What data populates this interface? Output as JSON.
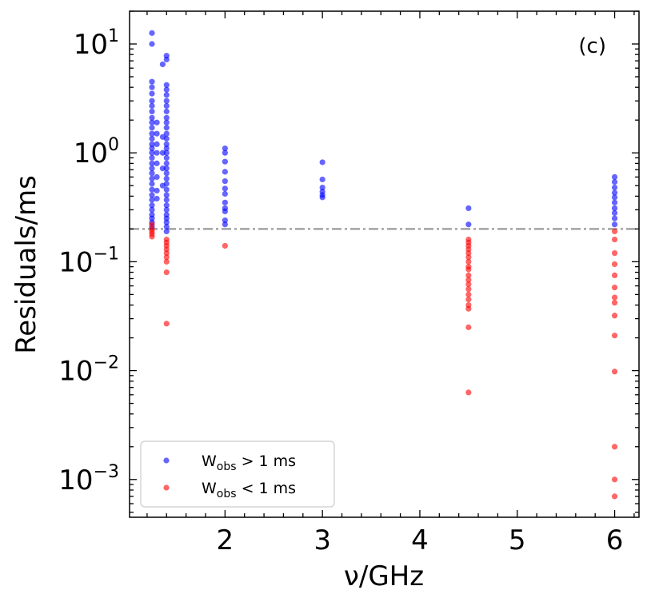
{
  "chart_data": {
    "type": "scatter",
    "title": "",
    "panel_label": "(c)",
    "xlabel": "ν/GHz",
    "ylabel": "Residuals/ms",
    "xscale": "linear",
    "yscale": "log",
    "xlim": [
      1.02,
      6.25
    ],
    "ylim": [
      0.00045,
      20
    ],
    "x_ticks": [
      {
        "value": 2,
        "label": "2"
      },
      {
        "value": 3,
        "label": "3"
      },
      {
        "value": 4,
        "label": "4"
      },
      {
        "value": 5,
        "label": "5"
      },
      {
        "value": 6,
        "label": "6"
      }
    ],
    "y_ticks": [
      {
        "value": 0.001,
        "base": "10",
        "exp": "−3"
      },
      {
        "value": 0.01,
        "base": "10",
        "exp": "−2"
      },
      {
        "value": 0.1,
        "base": "10",
        "exp": "−1"
      },
      {
        "value": 1,
        "base": "10",
        "exp": "0"
      },
      {
        "value": 10,
        "base": "10",
        "exp": "1"
      }
    ],
    "threshold_line": {
      "y": 0.2,
      "style": "dash-dot",
      "color": "#999999"
    },
    "legend": {
      "placement": "lower-left",
      "entries": [
        {
          "main": "W",
          "sub": "obs",
          "rest": " > 1 ms",
          "color": "#0000ff"
        },
        {
          "main": "W",
          "sub": "obs",
          "rest": " < 1 ms",
          "color": "#ff0000"
        }
      ]
    },
    "series": [
      {
        "name": "W_obs > 1 ms",
        "color": "#0000ff",
        "points": [
          {
            "x": 1.25,
            "y": 12.6
          },
          {
            "x": 1.25,
            "y": 10.0
          },
          {
            "x": 1.25,
            "y": 4.5
          },
          {
            "x": 1.25,
            "y": 4.0
          },
          {
            "x": 1.25,
            "y": 3.5
          },
          {
            "x": 1.25,
            "y": 3.0
          },
          {
            "x": 1.25,
            "y": 2.7
          },
          {
            "x": 1.25,
            "y": 2.4
          },
          {
            "x": 1.25,
            "y": 2.1
          },
          {
            "x": 1.25,
            "y": 1.9
          },
          {
            "x": 1.25,
            "y": 1.7
          },
          {
            "x": 1.25,
            "y": 1.5
          },
          {
            "x": 1.25,
            "y": 1.35
          },
          {
            "x": 1.25,
            "y": 1.2
          },
          {
            "x": 1.25,
            "y": 1.1
          },
          {
            "x": 1.25,
            "y": 1.0
          },
          {
            "x": 1.25,
            "y": 0.9
          },
          {
            "x": 1.25,
            "y": 0.8
          },
          {
            "x": 1.25,
            "y": 0.72
          },
          {
            "x": 1.25,
            "y": 0.65
          },
          {
            "x": 1.25,
            "y": 0.58
          },
          {
            "x": 1.25,
            "y": 0.52
          },
          {
            "x": 1.25,
            "y": 0.46
          },
          {
            "x": 1.25,
            "y": 0.41
          },
          {
            "x": 1.25,
            "y": 0.37
          },
          {
            "x": 1.25,
            "y": 0.33
          },
          {
            "x": 1.25,
            "y": 0.3
          },
          {
            "x": 1.25,
            "y": 0.27
          },
          {
            "x": 1.25,
            "y": 0.25
          },
          {
            "x": 1.25,
            "y": 0.23
          },
          {
            "x": 1.25,
            "y": 0.21
          },
          {
            "x": 1.3,
            "y": 1.9
          },
          {
            "x": 1.3,
            "y": 1.5
          },
          {
            "x": 1.3,
            "y": 1.2
          },
          {
            "x": 1.3,
            "y": 1.0
          },
          {
            "x": 1.3,
            "y": 0.8
          },
          {
            "x": 1.3,
            "y": 0.6
          },
          {
            "x": 1.3,
            "y": 0.45
          },
          {
            "x": 1.3,
            "y": 0.38
          },
          {
            "x": 1.36,
            "y": 1.4
          },
          {
            "x": 1.36,
            "y": 1.0
          },
          {
            "x": 1.36,
            "y": 0.72
          },
          {
            "x": 1.36,
            "y": 0.5
          },
          {
            "x": 1.36,
            "y": 6.5
          },
          {
            "x": 1.4,
            "y": 7.8
          },
          {
            "x": 1.4,
            "y": 7.2
          },
          {
            "x": 1.4,
            "y": 4.2
          },
          {
            "x": 1.4,
            "y": 3.8
          },
          {
            "x": 1.4,
            "y": 3.4
          },
          {
            "x": 1.4,
            "y": 3.0
          },
          {
            "x": 1.4,
            "y": 2.7
          },
          {
            "x": 1.4,
            "y": 2.4
          },
          {
            "x": 1.4,
            "y": 2.1
          },
          {
            "x": 1.4,
            "y": 1.9
          },
          {
            "x": 1.4,
            "y": 1.7
          },
          {
            "x": 1.4,
            "y": 1.5
          },
          {
            "x": 1.4,
            "y": 1.35
          },
          {
            "x": 1.4,
            "y": 1.2
          },
          {
            "x": 1.4,
            "y": 1.1
          },
          {
            "x": 1.4,
            "y": 1.0
          },
          {
            "x": 1.4,
            "y": 0.9
          },
          {
            "x": 1.4,
            "y": 0.8
          },
          {
            "x": 1.4,
            "y": 0.72
          },
          {
            "x": 1.4,
            "y": 0.65
          },
          {
            "x": 1.4,
            "y": 0.58
          },
          {
            "x": 1.4,
            "y": 0.52
          },
          {
            "x": 1.4,
            "y": 0.46
          },
          {
            "x": 1.4,
            "y": 0.41
          },
          {
            "x": 1.4,
            "y": 0.37
          },
          {
            "x": 1.4,
            "y": 0.33
          },
          {
            "x": 1.4,
            "y": 0.3
          },
          {
            "x": 1.4,
            "y": 0.27
          },
          {
            "x": 1.4,
            "y": 0.25
          },
          {
            "x": 1.4,
            "y": 0.23
          },
          {
            "x": 1.4,
            "y": 0.21
          },
          {
            "x": 1.4,
            "y": 0.19
          },
          {
            "x": 2.0,
            "y": 1.1
          },
          {
            "x": 2.0,
            "y": 1.0
          },
          {
            "x": 2.0,
            "y": 0.83
          },
          {
            "x": 2.0,
            "y": 0.67
          },
          {
            "x": 2.0,
            "y": 0.55
          },
          {
            "x": 2.0,
            "y": 0.47
          },
          {
            "x": 2.0,
            "y": 0.42
          },
          {
            "x": 2.0,
            "y": 0.35
          },
          {
            "x": 2.0,
            "y": 0.31
          },
          {
            "x": 2.0,
            "y": 0.29
          },
          {
            "x": 2.0,
            "y": 0.24
          },
          {
            "x": 2.0,
            "y": 0.22
          },
          {
            "x": 3.0,
            "y": 0.82
          },
          {
            "x": 3.0,
            "y": 0.57
          },
          {
            "x": 3.0,
            "y": 0.48
          },
          {
            "x": 3.0,
            "y": 0.44
          },
          {
            "x": 3.0,
            "y": 0.41
          },
          {
            "x": 3.0,
            "y": 0.39
          },
          {
            "x": 4.5,
            "y": 0.31
          },
          {
            "x": 4.5,
            "y": 0.22
          },
          {
            "x": 6.0,
            "y": 0.6
          },
          {
            "x": 6.0,
            "y": 0.54
          },
          {
            "x": 6.0,
            "y": 0.48
          },
          {
            "x": 6.0,
            "y": 0.43
          },
          {
            "x": 6.0,
            "y": 0.39
          },
          {
            "x": 6.0,
            "y": 0.35
          },
          {
            "x": 6.0,
            "y": 0.31
          },
          {
            "x": 6.0,
            "y": 0.28
          },
          {
            "x": 6.0,
            "y": 0.25
          },
          {
            "x": 6.0,
            "y": 0.22
          }
        ]
      },
      {
        "name": "W_obs < 1 ms",
        "color": "#ff0000",
        "points": [
          {
            "x": 1.25,
            "y": 0.22
          },
          {
            "x": 1.25,
            "y": 0.2
          },
          {
            "x": 1.25,
            "y": 0.19
          },
          {
            "x": 1.25,
            "y": 0.18
          },
          {
            "x": 1.25,
            "y": 0.17
          },
          {
            "x": 1.4,
            "y": 0.16
          },
          {
            "x": 1.4,
            "y": 0.15
          },
          {
            "x": 1.4,
            "y": 0.14
          },
          {
            "x": 1.4,
            "y": 0.13
          },
          {
            "x": 1.4,
            "y": 0.12
          },
          {
            "x": 1.4,
            "y": 0.11
          },
          {
            "x": 1.4,
            "y": 0.1
          },
          {
            "x": 1.4,
            "y": 0.08
          },
          {
            "x": 1.4,
            "y": 0.027
          },
          {
            "x": 2.0,
            "y": 0.14
          },
          {
            "x": 4.5,
            "y": 0.16
          },
          {
            "x": 4.5,
            "y": 0.15
          },
          {
            "x": 4.5,
            "y": 0.14
          },
          {
            "x": 4.5,
            "y": 0.13
          },
          {
            "x": 4.5,
            "y": 0.12
          },
          {
            "x": 4.5,
            "y": 0.11
          },
          {
            "x": 4.5,
            "y": 0.1
          },
          {
            "x": 4.5,
            "y": 0.09
          },
          {
            "x": 4.5,
            "y": 0.085
          },
          {
            "x": 4.5,
            "y": 0.075
          },
          {
            "x": 4.5,
            "y": 0.068
          },
          {
            "x": 4.5,
            "y": 0.062
          },
          {
            "x": 4.5,
            "y": 0.056
          },
          {
            "x": 4.5,
            "y": 0.05
          },
          {
            "x": 4.5,
            "y": 0.045
          },
          {
            "x": 4.5,
            "y": 0.04
          },
          {
            "x": 4.5,
            "y": 0.037
          },
          {
            "x": 4.5,
            "y": 0.025
          },
          {
            "x": 4.5,
            "y": 0.0063
          },
          {
            "x": 6.0,
            "y": 0.19
          },
          {
            "x": 6.0,
            "y": 0.16
          },
          {
            "x": 6.0,
            "y": 0.12
          },
          {
            "x": 6.0,
            "y": 0.095
          },
          {
            "x": 6.0,
            "y": 0.075
          },
          {
            "x": 6.0,
            "y": 0.058
          },
          {
            "x": 6.0,
            "y": 0.047
          },
          {
            "x": 6.0,
            "y": 0.042
          },
          {
            "x": 6.0,
            "y": 0.032
          },
          {
            "x": 6.0,
            "y": 0.021
          },
          {
            "x": 6.0,
            "y": 0.0098
          },
          {
            "x": 6.0,
            "y": 0.002
          },
          {
            "x": 6.0,
            "y": 0.001
          },
          {
            "x": 6.0,
            "y": 0.0007
          }
        ]
      }
    ]
  }
}
